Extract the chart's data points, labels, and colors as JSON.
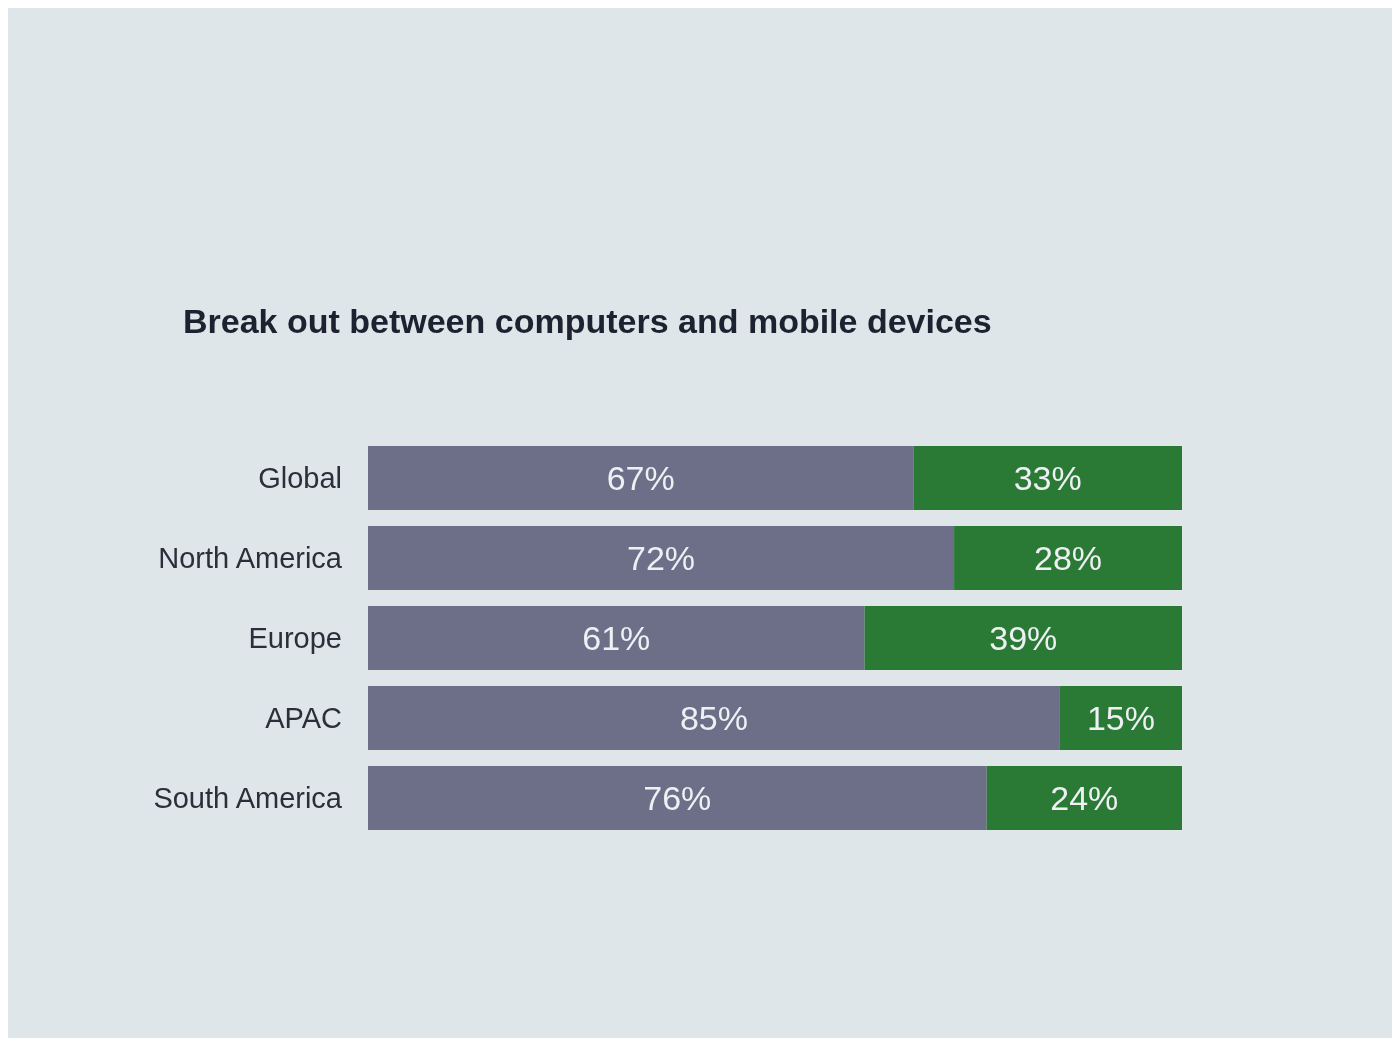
{
  "chart_data": {
    "type": "bar",
    "orientation": "horizontal",
    "stacked": true,
    "title": "Break out between computers and mobile devices",
    "categories": [
      "Global",
      "North America",
      "Europe",
      "APAC",
      "South America"
    ],
    "series": [
      {
        "color": "#6d6f89",
        "values": [
          67,
          72,
          61,
          85,
          76
        ],
        "value_labels": [
          "67%",
          "72%",
          "61%",
          "85%",
          "76%"
        ]
      },
      {
        "color": "#2a7a36",
        "values": [
          33,
          28,
          39,
          15,
          24
        ],
        "value_labels": [
          "33%",
          "28%",
          "39%",
          "15%",
          "24%"
        ]
      }
    ]
  }
}
